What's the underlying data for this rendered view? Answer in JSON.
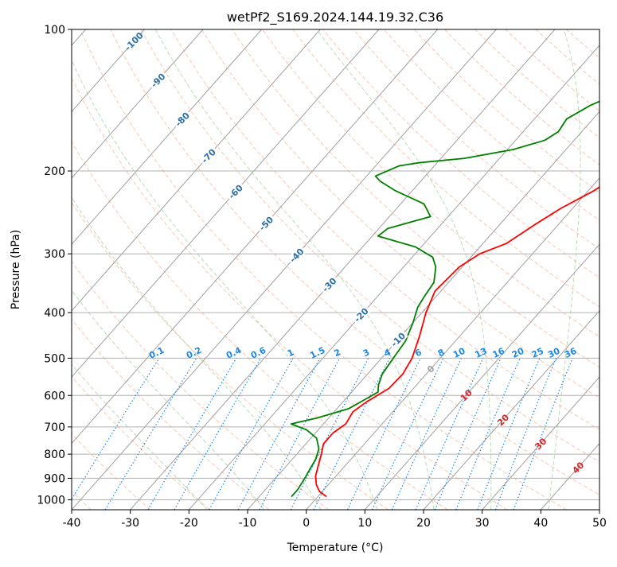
{
  "chart_data": {
    "type": "line",
    "title": "wetPf2_S169.2024.144.19.32.C36",
    "xlabel": "Temperature (°C)",
    "ylabel": "Pressure (hPa)",
    "xlim": [
      -40,
      50
    ],
    "ylim": [
      1050,
      100
    ],
    "y_scale": "log",
    "grid": true,
    "x_ticks": [
      -40,
      -30,
      -20,
      -10,
      0,
      10,
      20,
      30,
      40,
      50
    ],
    "y_ticks": [
      100,
      200,
      300,
      400,
      500,
      600,
      700,
      800,
      900,
      1000
    ],
    "colors": {
      "temperature": "#ff0000",
      "dewpoint": "#008000",
      "dry_adiabat": "#f4a582",
      "moist_adiabat": "#7fbf7b",
      "mixing_ratio": "#1e88e5",
      "isotherm": "#a0a0a0",
      "lcl_label": "#a0a0a0"
    },
    "series": [
      {
        "key": "temperature",
        "points": [
          {
            "p": 985,
            "t": 1.5
          },
          {
            "p": 960,
            "t": -0.5
          },
          {
            "p": 930,
            "t": -2.0
          },
          {
            "p": 890,
            "t": -3.5
          },
          {
            "p": 850,
            "t": -4.5
          },
          {
            "p": 800,
            "t": -5.8
          },
          {
            "p": 760,
            "t": -7.0
          },
          {
            "p": 720,
            "t": -7.0
          },
          {
            "p": 690,
            "t": -6.2
          },
          {
            "p": 650,
            "t": -6.8
          },
          {
            "p": 620,
            "t": -6.0
          },
          {
            "p": 580,
            "t": -4.2
          },
          {
            "p": 540,
            "t": -4.0
          },
          {
            "p": 500,
            "t": -4.8
          },
          {
            "p": 450,
            "t": -6.8
          },
          {
            "p": 400,
            "t": -9.3
          },
          {
            "p": 360,
            "t": -11.0
          },
          {
            "p": 320,
            "t": -10.5
          },
          {
            "p": 300,
            "t": -9.0
          },
          {
            "p": 285,
            "t": -6.0
          },
          {
            "p": 260,
            "t": -4.0
          },
          {
            "p": 240,
            "t": -2.0
          },
          {
            "p": 220,
            "t": 1.0
          },
          {
            "p": 200,
            "t": 3.0
          },
          {
            "p": 180,
            "t": 6.0
          },
          {
            "p": 160,
            "t": 9.0
          },
          {
            "p": 150,
            "t": 10.0
          },
          {
            "p": 130,
            "t": 12.0
          },
          {
            "p": 115,
            "t": 15.0
          },
          {
            "p": 100,
            "t": 18.0
          }
        ]
      },
      {
        "key": "dewpoint",
        "points": [
          {
            "p": 985,
            "t": -4.5
          },
          {
            "p": 950,
            "t": -4.5
          },
          {
            "p": 900,
            "t": -5.0
          },
          {
            "p": 860,
            "t": -5.5
          },
          {
            "p": 820,
            "t": -6.0
          },
          {
            "p": 780,
            "t": -7.0
          },
          {
            "p": 740,
            "t": -9.0
          },
          {
            "p": 710,
            "t": -12.0
          },
          {
            "p": 690,
            "t": -15.5
          },
          {
            "p": 670,
            "t": -12.0
          },
          {
            "p": 640,
            "t": -8.0
          },
          {
            "p": 610,
            "t": -6.5
          },
          {
            "p": 590,
            "t": -5.5
          },
          {
            "p": 570,
            "t": -6.5
          },
          {
            "p": 540,
            "t": -7.5
          },
          {
            "p": 500,
            "t": -8.0
          },
          {
            "p": 460,
            "t": -8.5
          },
          {
            "p": 420,
            "t": -10.0
          },
          {
            "p": 390,
            "t": -11.5
          },
          {
            "p": 370,
            "t": -12.0
          },
          {
            "p": 345,
            "t": -12.5
          },
          {
            "p": 320,
            "t": -14.5
          },
          {
            "p": 305,
            "t": -16.5
          },
          {
            "p": 290,
            "t": -21.0
          },
          {
            "p": 275,
            "t": -29.0
          },
          {
            "p": 265,
            "t": -28.5
          },
          {
            "p": 250,
            "t": -23.0
          },
          {
            "p": 235,
            "t": -26.0
          },
          {
            "p": 220,
            "t": -33.0
          },
          {
            "p": 210,
            "t": -37.0
          },
          {
            "p": 205,
            "t": -38.5
          },
          {
            "p": 195,
            "t": -36.0
          },
          {
            "p": 192,
            "t": -33.0
          },
          {
            "p": 188,
            "t": -26.0
          },
          {
            "p": 180,
            "t": -19.0
          },
          {
            "p": 172,
            "t": -15.0
          },
          {
            "p": 165,
            "t": -14.0
          },
          {
            "p": 155,
            "t": -14.5
          },
          {
            "p": 145,
            "t": -12.5
          },
          {
            "p": 135,
            "t": -9.0
          },
          {
            "p": 120,
            "t": -5.5
          },
          {
            "p": 110,
            "t": -3.0
          },
          {
            "p": 100,
            "t": 0.0
          }
        ]
      }
    ],
    "isotherm_labels": [
      "-100",
      "-90",
      "-80",
      "-70",
      "-60",
      "-50",
      "-40",
      "-30",
      "-20",
      "-10"
    ],
    "isotherm_label_temps": [
      -100,
      -90,
      -80,
      -70,
      -60,
      -50,
      -40,
      -30,
      -20,
      -10
    ],
    "mixing_ratio_labels": [
      "0.1",
      "0.2",
      "0.4",
      "0.6",
      "1",
      "1.5",
      "2",
      "3",
      "4",
      "6",
      "8",
      "10",
      "13",
      "16",
      "20",
      "25",
      "30",
      "36"
    ],
    "mixing_ratio_values": [
      0.1,
      0.2,
      0.4,
      0.6,
      1,
      1.5,
      2,
      3,
      4,
      6,
      8,
      10,
      13,
      16,
      20,
      25,
      30,
      36
    ],
    "moist_adiabat_labels": [
      "0",
      "10",
      "20",
      "30",
      "40"
    ],
    "moist_adiabat_label_temps": [
      0,
      10,
      20,
      30,
      40
    ],
    "dry_adiabat_thetas": [
      -70,
      -60,
      -50,
      -40,
      -30,
      -20,
      -10,
      0,
      10,
      20,
      30,
      40,
      50,
      60,
      70,
      80,
      90,
      100,
      110,
      120,
      130,
      140,
      150,
      160,
      170,
      180,
      190,
      200
    ],
    "moist_adiabat_starts": [
      -20,
      -10,
      0,
      10,
      20,
      30,
      40
    ]
  }
}
